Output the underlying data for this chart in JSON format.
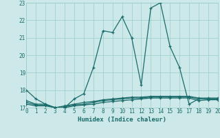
{
  "xlabel": "Humidex (Indice chaleur)",
  "bg_color": "#cce8e8",
  "grid_color": "#99cccc",
  "line_color": "#1a6b6b",
  "xlim": [
    0,
    20
  ],
  "ylim": [
    17,
    23
  ],
  "yticks": [
    17,
    18,
    19,
    20,
    21,
    22,
    23
  ],
  "xticks": [
    0,
    1,
    2,
    3,
    4,
    5,
    6,
    7,
    8,
    9,
    10,
    11,
    12,
    13,
    14,
    15,
    16,
    17,
    18,
    19,
    20
  ],
  "series": [
    [
      18.0,
      17.5,
      17.2,
      17.0,
      17.0,
      17.5,
      17.8,
      19.3,
      21.4,
      21.3,
      22.2,
      21.0,
      18.3,
      22.7,
      23.0,
      20.5,
      19.3,
      17.2,
      17.5,
      17.5,
      17.5
    ],
    [
      17.2,
      17.1,
      17.1,
      17.0,
      17.0,
      17.1,
      17.15,
      17.2,
      17.3,
      17.35,
      17.4,
      17.45,
      17.5,
      17.55,
      17.55,
      17.55,
      17.55,
      17.55,
      17.4,
      17.45,
      17.45
    ],
    [
      17.3,
      17.15,
      17.15,
      17.0,
      17.05,
      17.15,
      17.2,
      17.3,
      17.4,
      17.45,
      17.5,
      17.55,
      17.55,
      17.6,
      17.6,
      17.6,
      17.6,
      17.6,
      17.5,
      17.5,
      17.5
    ],
    [
      17.4,
      17.2,
      17.2,
      17.0,
      17.1,
      17.2,
      17.3,
      17.35,
      17.45,
      17.5,
      17.55,
      17.6,
      17.6,
      17.65,
      17.65,
      17.65,
      17.65,
      17.65,
      17.55,
      17.55,
      17.55
    ]
  ]
}
